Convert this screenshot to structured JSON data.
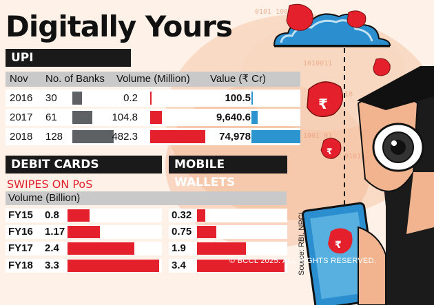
{
  "title": "Digitally Yours",
  "upi": {
    "section_label": "UPI",
    "headers": {
      "year": "Nov",
      "banks": "No. of Banks",
      "volume": "Volume (Million)",
      "value": "Value (₹ Cr)"
    },
    "rows": [
      {
        "year": "2016",
        "banks": "30",
        "volume": "0.2",
        "value": "100.5"
      },
      {
        "year": "2017",
        "banks": "61",
        "volume": "104.8",
        "value": "9,640.6"
      },
      {
        "year": "2018",
        "banks": "128",
        "volume": "482.3",
        "value": "74,978"
      }
    ]
  },
  "debit_cards": {
    "section_label": "DEBIT CARDS",
    "subhead": "SWIPES ON PoS",
    "volume_label": "Volume (Billion)",
    "rows": [
      {
        "fy": "FY15",
        "value": "0.8"
      },
      {
        "fy": "FY16",
        "value": "1.17"
      },
      {
        "fy": "FY17",
        "value": "2.4"
      },
      {
        "fy": "FY18",
        "value": "3.3"
      }
    ]
  },
  "mobile_wallets": {
    "section_label": "MOBILE WALLETS",
    "rows": [
      {
        "fy": "FY15",
        "value": "0.32"
      },
      {
        "fy": "FY16",
        "value": "0.75"
      },
      {
        "fy": "FY17",
        "value": "1.9"
      },
      {
        "fy": "FY18",
        "value": "3.4"
      }
    ]
  },
  "source": "Source: RBI, NPCI",
  "copyright": "© BCCL 2025. ALL RIGHTS RESERVED.",
  "colors": {
    "bank_bar": "#5d6164",
    "volume_bar": "#e3202b",
    "value_bar": "#2c95cf",
    "accent_red": "#e3202b"
  },
  "chart_data": [
    {
      "type": "table",
      "title": "UPI",
      "categories": [
        "2016",
        "2017",
        "2018"
      ],
      "series": [
        {
          "name": "No. of Banks",
          "values": [
            30,
            61,
            128
          ]
        },
        {
          "name": "Volume (Million)",
          "values": [
            0.2,
            104.8,
            482.3
          ]
        },
        {
          "name": "Value (₹ Cr)",
          "values": [
            100.5,
            9640.6,
            74978
          ]
        }
      ]
    },
    {
      "type": "bar",
      "title": "DEBIT CARDS",
      "subtitle": "SWIPES ON PoS",
      "ylabel": "Volume (Billion)",
      "categories": [
        "FY15",
        "FY16",
        "FY17",
        "FY18"
      ],
      "values": [
        0.8,
        1.17,
        2.4,
        3.3
      ]
    },
    {
      "type": "bar",
      "title": "MOBILE WALLETS",
      "categories": [
        "FY15",
        "FY16",
        "FY17",
        "FY18"
      ],
      "values": [
        0.32,
        0.75,
        1.9,
        3.4
      ]
    }
  ]
}
